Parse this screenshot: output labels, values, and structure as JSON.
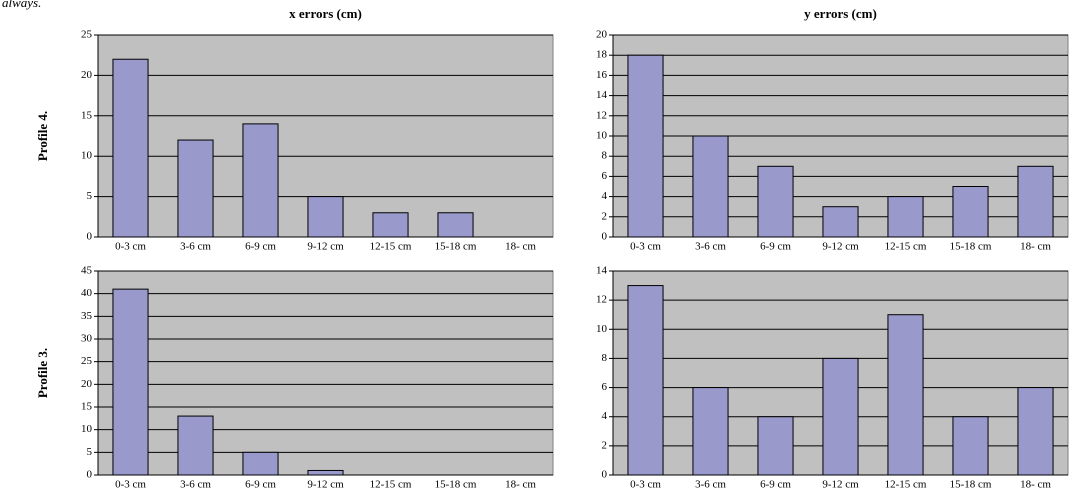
{
  "caption_fragment": "always.",
  "chart_data": [
    {
      "type": "bar",
      "title": "x errors (cm)",
      "ylabel": "Profile 4.",
      "categories": [
        "0-3 cm",
        "3-6 cm",
        "6-9 cm",
        "9-12 cm",
        "12-15 cm",
        "15-18 cm",
        "18- cm"
      ],
      "values": [
        22,
        12,
        14,
        5,
        3,
        3,
        0
      ],
      "color": "#9999cc",
      "ylim": [
        0,
        25
      ],
      "yticks": [
        0,
        5,
        10,
        15,
        20,
        25
      ],
      "grid": true
    },
    {
      "type": "bar",
      "title": "y errors (cm)",
      "categories": [
        "0-3 cm",
        "3-6 cm",
        "6-9 cm",
        "9-12 cm",
        "12-15 cm",
        "15-18 cm",
        "18- cm"
      ],
      "values": [
        18,
        10,
        7,
        3,
        4,
        5,
        7
      ],
      "color": "#9999cc",
      "ylim": [
        0,
        20
      ],
      "yticks": [
        0,
        2,
        4,
        6,
        8,
        10,
        12,
        14,
        16,
        18,
        20
      ],
      "grid": true
    },
    {
      "type": "bar",
      "ylabel": "Profile 3.",
      "categories": [
        "0-3 cm",
        "3-6 cm",
        "6-9 cm",
        "9-12 cm",
        "12-15 cm",
        "15-18 cm",
        "18- cm"
      ],
      "values": [
        41,
        13,
        5,
        1,
        0,
        0,
        0
      ],
      "color": "#9999cc",
      "ylim": [
        0,
        45
      ],
      "yticks": [
        0,
        5,
        10,
        15,
        20,
        25,
        30,
        35,
        40,
        45
      ],
      "grid": true
    },
    {
      "type": "bar",
      "categories": [
        "0-3 cm",
        "3-6 cm",
        "6-9 cm",
        "9-12 cm",
        "12-15 cm",
        "15-18 cm",
        "18- cm"
      ],
      "values": [
        13,
        6,
        4,
        8,
        11,
        4,
        6
      ],
      "color": "#9999cc",
      "ylim": [
        0,
        14
      ],
      "yticks": [
        0,
        2,
        4,
        6,
        8,
        10,
        12,
        14
      ],
      "grid": true
    }
  ]
}
